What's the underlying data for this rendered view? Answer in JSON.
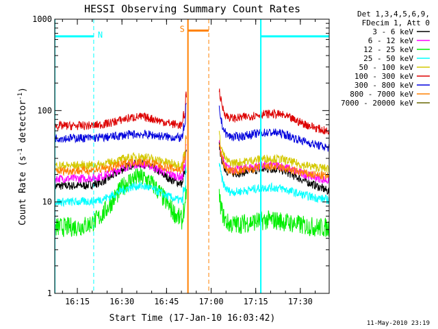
{
  "chart_data": {
    "type": "line",
    "title": "HESSI Observing Summary Count Rates",
    "xlabel": "Start Time (17-Jan-10 16:03:42)",
    "ylabel_main": "Count Rate (s",
    "ylabel_sup1": "-1",
    "ylabel_mid": " detector",
    "ylabel_sup2": "-1",
    "ylabel_end": ")",
    "yscale": "log",
    "ylim": [
      1,
      1000
    ],
    "xlim_min": [
      3.7,
      96
    ],
    "x_ticks_min": [
      11.3,
      26.3,
      41.3,
      56.3,
      71.3,
      86.3
    ],
    "x_tick_labels": [
      "16:15",
      "16:30",
      "16:45",
      "17:00",
      "17:15",
      "17:30"
    ],
    "y_ticks": [
      1,
      10,
      100,
      1000
    ],
    "y_tick_labels": [
      "1",
      "10",
      "100",
      "1000"
    ],
    "legend": {
      "header1": "Det 1,3,4,5,6,9,",
      "header2": "FDecim 1, Att 0",
      "entries": [
        {
          "label": "3 - 6 keV",
          "color": "#000000"
        },
        {
          "label": "6 - 12 keV",
          "color": "#ff00ff"
        },
        {
          "label": "12 - 25 keV",
          "color": "#00ee00"
        },
        {
          "label": "25 - 50 keV",
          "color": "#00ffff"
        },
        {
          "label": "50 - 100 keV",
          "color": "#d4c800"
        },
        {
          "label": "100 - 300 keV",
          "color": "#dd0000"
        },
        {
          "label": "300 - 800 keV",
          "color": "#0000dd"
        },
        {
          "label": "800 - 7000 keV",
          "color": "#ff8000"
        },
        {
          "label": "7000 - 20000 keV",
          "color": "#666600"
        }
      ]
    },
    "series": [
      {
        "name": "3 - 6 keV",
        "color": "#000000",
        "level": 15,
        "hump": 1.75,
        "after": 20,
        "after_end": 13
      },
      {
        "name": "6 - 12 keV",
        "color": "#ff00ff",
        "level": 18,
        "hump": 1.45,
        "after": 22,
        "after_end": 17
      },
      {
        "name": "12 - 25 keV",
        "color": "#00ee00",
        "level": 5.3,
        "hump": 3.5,
        "after": 5.5,
        "after_end": 5.2
      },
      {
        "name": "25 - 50 keV",
        "color": "#00ffff",
        "level": 10,
        "hump": 1.5,
        "after": 12.5,
        "after_end": 10.5
      },
      {
        "name": "50 - 100 keV",
        "color": "#d4c800",
        "level": 25,
        "hump": 1.25,
        "after": 26,
        "after_end": 23
      },
      {
        "name": "100 - 300 keV",
        "color": "#dd0000",
        "level": 68,
        "hump": 1.25,
        "after": 80,
        "after_end": 58
      },
      {
        "name": "300 - 800 keV",
        "color": "#0000dd",
        "level": 50,
        "hump": 1.1,
        "after": 50,
        "after_end": 39
      },
      {
        "name": "800 - 7000 keV",
        "color": "#ff8000",
        "level": 22,
        "hump": 1.25,
        "after": 21,
        "after_end": 19
      }
    ],
    "gap_min": [
      48,
      59
    ],
    "spike_min": [
      47.5,
      59.5
    ],
    "flags": [
      {
        "label": "N",
        "color": "#00ffff",
        "intervals": [
          [
            3.7,
            16.8
          ],
          [
            73,
            96
          ]
        ],
        "value": 650
      },
      {
        "label": "S",
        "color": "#ff8000",
        "intervals": [
          [
            48.5,
            55.5
          ]
        ],
        "value": 750
      }
    ],
    "vlines_cyan_solid": [
      3.7,
      73
    ],
    "vlines_cyan_dash": [
      16.8,
      96
    ],
    "vlines_orange_solid": [
      48.5
    ],
    "vlines_orange_dash": [
      55.5
    ],
    "stamp": "11-May-2010 23:19"
  }
}
